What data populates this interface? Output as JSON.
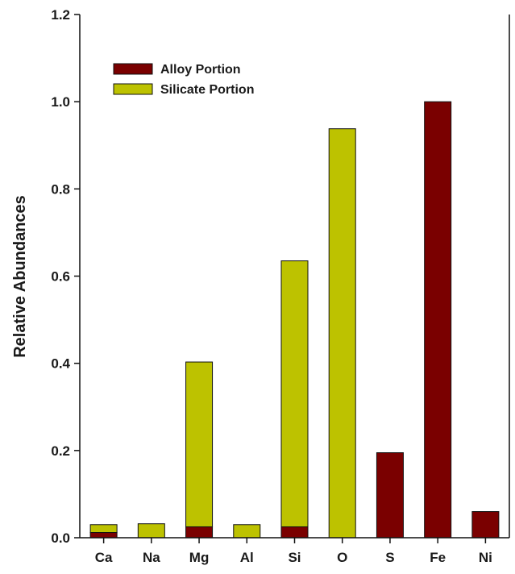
{
  "chart_data": {
    "type": "bar",
    "stacked": true,
    "title": "",
    "xlabel": "",
    "ylabel": "Relative Abundances",
    "ylim": [
      0,
      1.2
    ],
    "yticks": [
      "0.0",
      "0.2",
      "0.4",
      "0.6",
      "0.8",
      "1.0",
      "1.2"
    ],
    "categories": [
      "Ca",
      "Na",
      "Mg",
      "Al",
      "Si",
      "O",
      "S",
      "Fe",
      "Ni"
    ],
    "series": [
      {
        "name": "Alloy Portion",
        "color": "#7a0000",
        "values": [
          0.012,
          0,
          0.025,
          0,
          0.025,
          0,
          0.195,
          1.0,
          0.06
        ]
      },
      {
        "name": "Silicate Portion",
        "color": "#bdc200",
        "values": [
          0.018,
          0.032,
          0.378,
          0.03,
          0.61,
          0.938,
          0,
          0,
          0
        ]
      }
    ],
    "legend_position": "top-left",
    "grid": false
  }
}
